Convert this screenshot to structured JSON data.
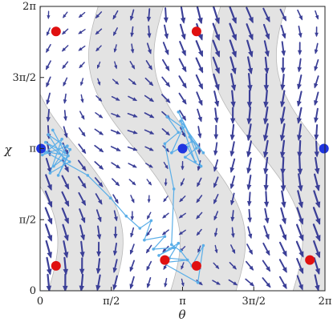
{
  "chart_data": {
    "type": "vector-field",
    "title": "",
    "xlabel": "θ",
    "ylabel": "χ",
    "xlim": [
      0,
      6.2832
    ],
    "ylim": [
      0,
      6.2832
    ],
    "x_ticks": [
      {
        "value": 0,
        "label": "0"
      },
      {
        "value": 1.5708,
        "label": "π/2"
      },
      {
        "value": 3.1416,
        "label": "π"
      },
      {
        "value": 4.7124,
        "label": "3π/2"
      },
      {
        "value": 6.2832,
        "label": "2π"
      }
    ],
    "y_ticks": [
      {
        "value": 0,
        "label": "0"
      },
      {
        "value": 1.5708,
        "label": "π/2"
      },
      {
        "value": 3.1416,
        "label": "π"
      },
      {
        "value": 4.7124,
        "label": "3π/2"
      },
      {
        "value": 6.2832,
        "label": "2π"
      }
    ],
    "grid": false,
    "colors": {
      "region": "#e3e3e3",
      "region_edge": "#b8b8b8",
      "arrow": "#3b3f97",
      "trajectory": "#5aaee8",
      "blue_point": "#1f35e0",
      "red_point": "#e01010"
    },
    "red_points": [
      [
        0.35,
        5.73
      ],
      [
        3.45,
        5.73
      ],
      [
        0.35,
        0.55
      ],
      [
        3.45,
        0.55
      ],
      [
        2.75,
        0.68
      ],
      [
        5.95,
        0.68
      ],
      [
        0.35,
        5.73
      ]
    ],
    "blue_points": [
      [
        0.02,
        3.1416
      ],
      [
        3.1416,
        3.1416
      ],
      [
        6.26,
        3.1416
      ]
    ],
    "trajectories": [
      {
        "points": [
          [
            0.28,
            3.55
          ],
          [
            0.55,
            3.05
          ],
          [
            0.12,
            3.28
          ],
          [
            0.65,
            2.85
          ],
          [
            0.22,
            2.6
          ],
          [
            0.48,
            3.35
          ],
          [
            0.05,
            3.0
          ],
          [
            0.6,
            3.2
          ],
          [
            0.3,
            2.75
          ],
          [
            0.52,
            2.92
          ],
          [
            0.18,
            3.45
          ],
          [
            0.66,
            3.12
          ],
          [
            0.4,
            2.55
          ],
          [
            0.62,
            2.98
          ],
          [
            0.1,
            3.08
          ],
          [
            1.05,
            2.55
          ],
          [
            1.55,
            2.05
          ],
          [
            1.9,
            1.65
          ],
          [
            2.2,
            1.38
          ],
          [
            2.45,
            1.55
          ],
          [
            2.3,
            1.12
          ],
          [
            2.75,
            1.2
          ],
          [
            2.5,
            0.92
          ],
          [
            2.95,
            0.95
          ],
          [
            2.62,
            0.78
          ],
          [
            3.05,
            1.05
          ],
          [
            2.85,
            0.72
          ],
          [
            3.25,
            0.68
          ],
          [
            2.7,
            0.62
          ],
          [
            3.48,
            0.18
          ],
          [
            3.6,
            1.0
          ],
          [
            3.35,
            0.55
          ],
          [
            3.1,
            0.88
          ],
          [
            2.9,
            1.02
          ],
          [
            2.95,
            2.25
          ],
          [
            2.75,
            3.25
          ],
          [
            3.05,
            3.5
          ],
          [
            2.8,
            3.85
          ],
          [
            3.15,
            3.6
          ],
          [
            2.9,
            3.05
          ],
          [
            3.35,
            3.3
          ],
          [
            3.05,
            3.95
          ],
          [
            3.45,
            3.15
          ],
          [
            3.2,
            2.95
          ],
          [
            3.55,
            2.75
          ],
          [
            3.3,
            3.4
          ],
          [
            3.6,
            3.05
          ],
          [
            3.1,
            3.75
          ],
          [
            3.42,
            2.85
          ],
          [
            3.25,
            3.18
          ]
        ]
      }
    ]
  }
}
